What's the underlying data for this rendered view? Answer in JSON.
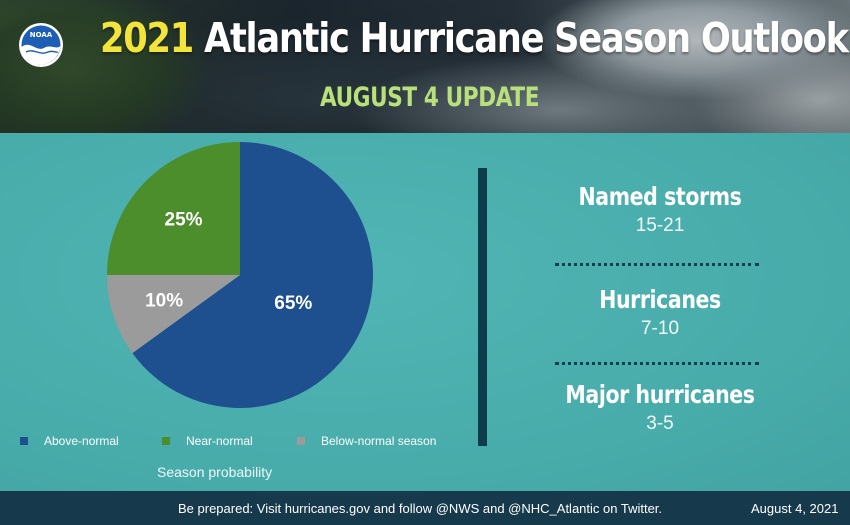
{
  "header": {
    "year": "2021",
    "title_rest": "Atlantic Hurricane Season Outlook",
    "subtitle": "AUGUST 4 UPDATE",
    "logo_text": "NOAA",
    "logo_icon": "noaa-logo-icon"
  },
  "chart_data": {
    "type": "pie",
    "xlabel": "Season probability",
    "slices": [
      {
        "name": "Above-normal",
        "value": 65,
        "label": "65%",
        "color": "#1e4f8f"
      },
      {
        "name": "Below-normal season",
        "value": 10,
        "label": "10%",
        "color": "#9b9b9b"
      },
      {
        "name": "Near-normal",
        "value": 25,
        "label": "25%",
        "color": "#4b8e2b"
      }
    ],
    "legend": [
      {
        "name": "Above-normal",
        "color": "#1e4f8f"
      },
      {
        "name": "Near-normal",
        "color": "#4b8e2b"
      },
      {
        "name": "Below-normal season",
        "color": "#9b9b9b"
      }
    ],
    "legend_position": "bottom"
  },
  "stats": [
    {
      "label": "Named storms",
      "value": "15-21"
    },
    {
      "label": "Hurricanes",
      "value": "7-10"
    },
    {
      "label": "Major hurricanes",
      "value": "3-5"
    }
  ],
  "footer": {
    "text": "Be prepared: Visit hurricanes.gov and follow @NWS and @NHC_Atlantic on Twitter.",
    "date": "August 4, 2021"
  }
}
